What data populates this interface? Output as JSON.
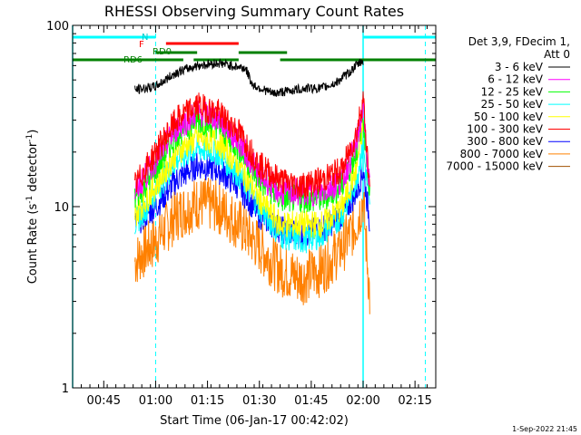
{
  "chart_data": {
    "type": "line",
    "title": "RHESSI Observing Summary Count Rates",
    "xlabel": "Start Time (06-Jan-17 00:42:02)",
    "ylabel_main": "Count Rate (s",
    "ylabel_sup": "-1",
    "ylabel_rest": " detector",
    "ylabel_close": ")",
    "yscale": "log",
    "xlim_minutes_after_0042": [
      -6,
      99
    ],
    "ylim": [
      1,
      100
    ],
    "x_ticks": [
      {
        "label": "00:45",
        "min": 3
      },
      {
        "label": "01:00",
        "min": 18
      },
      {
        "label": "01:15",
        "min": 33
      },
      {
        "label": "01:30",
        "min": 48
      },
      {
        "label": "01:45",
        "min": 63
      },
      {
        "label": "02:00",
        "min": 78
      },
      {
        "label": "02:15",
        "min": 93
      }
    ],
    "y_ticks": [
      {
        "label": "1",
        "value": 1
      },
      {
        "label": "10",
        "value": 10
      },
      {
        "label": "100",
        "value": 100
      }
    ],
    "legend": {
      "header": [
        "Det 3,9, FDecim 1,",
        "Att 0"
      ],
      "placement": "right"
    },
    "series": [
      {
        "name": "3 - 6 keV",
        "color": "#000000",
        "x": [
          12,
          18,
          24,
          30,
          36,
          44,
          46,
          52,
          58,
          62,
          66,
          70,
          74,
          76,
          78
        ],
        "y": [
          44,
          46,
          55,
          60,
          62,
          58,
          47,
          42,
          44,
          45,
          45,
          48,
          55,
          60,
          64
        ]
      },
      {
        "name": "6 - 12 keV",
        "color": "#ff00ff",
        "x": [
          12,
          18,
          24,
          30,
          36,
          42,
          48,
          54,
          60,
          66,
          72,
          76,
          78,
          80
        ],
        "y": [
          12,
          18,
          27,
          33,
          31,
          23,
          15,
          12,
          12,
          12,
          14,
          22,
          35,
          12
        ]
      },
      {
        "name": "12 - 25 keV",
        "color": "#00ff00",
        "x": [
          12,
          18,
          24,
          30,
          36,
          42,
          48,
          54,
          60,
          66,
          72,
          76,
          78,
          80
        ],
        "y": [
          11,
          16,
          25,
          30,
          28,
          21,
          14,
          11,
          11,
          11,
          13,
          20,
          32,
          11
        ]
      },
      {
        "name": "25 - 50 keV",
        "color": "#00ffff",
        "x": [
          12,
          18,
          24,
          30,
          36,
          42,
          48,
          54,
          60,
          66,
          72,
          76,
          78,
          80
        ],
        "y": [
          8,
          12,
          18,
          21,
          20,
          15,
          10,
          7,
          6.5,
          7,
          9,
          14,
          22,
          9
        ]
      },
      {
        "name": "50 - 100 keV",
        "color": "#ffff00",
        "x": [
          12,
          18,
          24,
          30,
          36,
          42,
          48,
          54,
          60,
          66,
          72,
          76,
          78
        ],
        "y": [
          9,
          13,
          20,
          24,
          23,
          17,
          11,
          8,
          8,
          8,
          10,
          16,
          28
        ]
      },
      {
        "name": "100 - 300 keV",
        "color": "#ff0000",
        "x": [
          12,
          18,
          24,
          30,
          36,
          42,
          48,
          54,
          60,
          66,
          72,
          76,
          78,
          80
        ],
        "y": [
          13,
          20,
          30,
          36,
          33,
          26,
          17,
          14,
          13,
          14,
          16,
          25,
          40,
          12
        ]
      },
      {
        "name": "300 - 800 keV",
        "color": "#0000ff",
        "x": [
          12,
          18,
          24,
          30,
          36,
          42,
          48,
          54,
          60,
          66,
          72,
          76,
          78,
          80
        ],
        "y": [
          8,
          10,
          14,
          17,
          16,
          13,
          9,
          7.5,
          7,
          7.5,
          9,
          12,
          16,
          8
        ]
      },
      {
        "name": "800 - 7000 keV",
        "color": "#ff8000",
        "x": [
          12,
          18,
          24,
          30,
          36,
          42,
          48,
          54,
          60,
          66,
          72,
          76,
          78,
          80
        ],
        "y": [
          5,
          6.5,
          9,
          10.5,
          10,
          8,
          6,
          4.5,
          4,
          4.5,
          6,
          8,
          11,
          3
        ]
      },
      {
        "name": "7000 - 15000 keV",
        "color": "#a05000",
        "x": [],
        "y": []
      }
    ],
    "annotations": [
      {
        "text": "N",
        "color": "#00cccc"
      },
      {
        "text": "F",
        "color": "#ff0000"
      },
      {
        "text": "RD0",
        "color": "#008000"
      },
      {
        "text": "RD6",
        "color": "#008000"
      }
    ],
    "flag_bars": [
      {
        "name": "night",
        "color": "#00ffff",
        "segments": [
          [
            -6,
            18
          ],
          [
            78,
            99
          ]
        ]
      },
      {
        "name": "flare",
        "color": "#ff0000",
        "segments": [
          [
            21,
            42
          ]
        ]
      },
      {
        "name": "decimation-upper",
        "color": "#008000",
        "segments": [
          [
            18,
            30
          ],
          [
            42,
            56
          ]
        ]
      },
      {
        "name": "decimation-lower",
        "color": "#008000",
        "segments": [
          [
            -6,
            26
          ],
          [
            29,
            42
          ],
          [
            54,
            99
          ]
        ]
      }
    ]
  },
  "timestamp": "1-Sep-2022 21:45"
}
